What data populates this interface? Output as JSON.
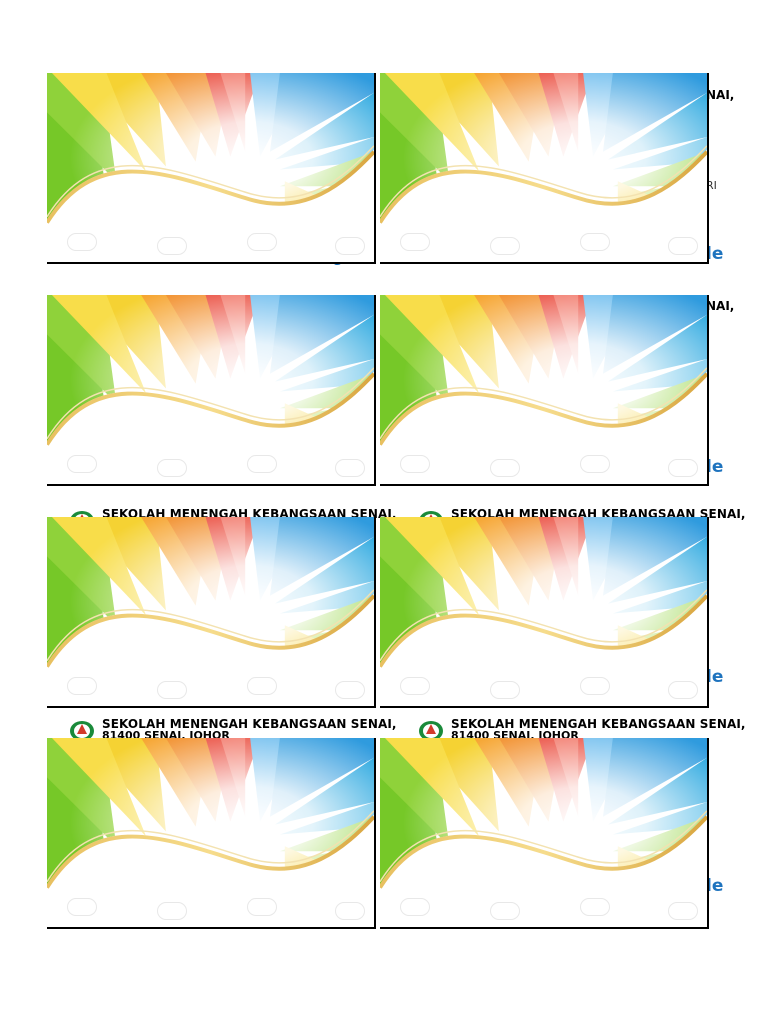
{
  "colors": {
    "accent_blue": "#1e73be",
    "card_border": "#000000"
  },
  "school": {
    "name": "SEKOLAH MENENGAH KEBANGSAAN SENAI,",
    "address": "81400 SENAI, JOHOR",
    "logo_icon": "school-crest-icon"
  },
  "peeks": {
    "name_tail": "NAI,",
    "ri_fragment": "RI",
    "le_fragment": "le",
    "g_fragment": "g"
  },
  "card_count": 8
}
